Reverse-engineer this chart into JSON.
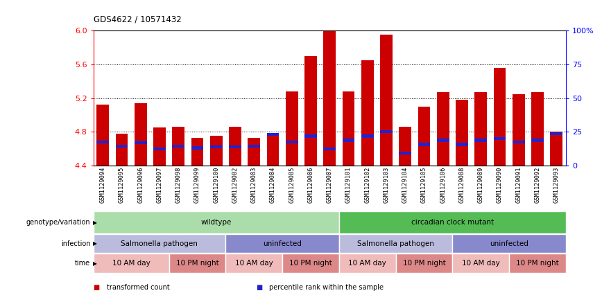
{
  "title": "GDS4622 / 10571432",
  "samples": [
    "GSM1129094",
    "GSM1129095",
    "GSM1129096",
    "GSM1129097",
    "GSM1129098",
    "GSM1129099",
    "GSM1129100",
    "GSM1129082",
    "GSM1129083",
    "GSM1129084",
    "GSM1129085",
    "GSM1129086",
    "GSM1129087",
    "GSM1129101",
    "GSM1129102",
    "GSM1129103",
    "GSM1129104",
    "GSM1129105",
    "GSM1129106",
    "GSM1129088",
    "GSM1129089",
    "GSM1129090",
    "GSM1129091",
    "GSM1129092",
    "GSM1129093"
  ],
  "bar_heights": [
    5.12,
    4.78,
    5.14,
    4.85,
    4.86,
    4.73,
    4.75,
    4.86,
    4.73,
    4.78,
    5.28,
    5.7,
    6.0,
    5.28,
    5.65,
    5.95,
    4.86,
    5.1,
    5.27,
    5.18,
    5.27,
    5.56,
    5.25,
    5.27,
    4.8
  ],
  "blue_markers": [
    4.68,
    4.63,
    4.67,
    4.6,
    4.63,
    4.61,
    4.62,
    4.62,
    4.63,
    4.77,
    4.68,
    4.75,
    4.6,
    4.7,
    4.75,
    4.8,
    4.55,
    4.65,
    4.7,
    4.65,
    4.7,
    4.72,
    4.68,
    4.7,
    4.78
  ],
  "y_min": 4.4,
  "y_max": 6.0,
  "y_ticks": [
    4.4,
    4.8,
    5.2,
    5.6,
    6.0
  ],
  "y2_ticks": [
    0,
    25,
    50,
    75,
    100
  ],
  "bar_color": "#cc0000",
  "blue_color": "#2222cc",
  "annotation_rows": [
    {
      "label": "genotype/variation",
      "segments": [
        {
          "text": "wildtype",
          "start": 0,
          "end": 13,
          "color": "#aaddaa"
        },
        {
          "text": "circadian clock mutant",
          "start": 13,
          "end": 25,
          "color": "#55bb55"
        }
      ]
    },
    {
      "label": "infection",
      "segments": [
        {
          "text": "Salmonella pathogen",
          "start": 0,
          "end": 7,
          "color": "#bbbbdd"
        },
        {
          "text": "uninfected",
          "start": 7,
          "end": 13,
          "color": "#8888cc"
        },
        {
          "text": "Salmonella pathogen",
          "start": 13,
          "end": 19,
          "color": "#bbbbdd"
        },
        {
          "text": "uninfected",
          "start": 19,
          "end": 25,
          "color": "#8888cc"
        }
      ]
    },
    {
      "label": "time",
      "segments": [
        {
          "text": "10 AM day",
          "start": 0,
          "end": 4,
          "color": "#f0bbbb"
        },
        {
          "text": "10 PM night",
          "start": 4,
          "end": 7,
          "color": "#dd8888"
        },
        {
          "text": "10 AM day",
          "start": 7,
          "end": 10,
          "color": "#f0bbbb"
        },
        {
          "text": "10 PM night",
          "start": 10,
          "end": 13,
          "color": "#dd8888"
        },
        {
          "text": "10 AM day",
          "start": 13,
          "end": 16,
          "color": "#f0bbbb"
        },
        {
          "text": "10 PM night",
          "start": 16,
          "end": 19,
          "color": "#dd8888"
        },
        {
          "text": "10 AM day",
          "start": 19,
          "end": 22,
          "color": "#f0bbbb"
        },
        {
          "text": "10 PM night",
          "start": 22,
          "end": 25,
          "color": "#dd8888"
        }
      ]
    }
  ],
  "legend": [
    {
      "label": "transformed count",
      "color": "#cc0000"
    },
    {
      "label": "percentile rank within the sample",
      "color": "#2222cc"
    }
  ]
}
